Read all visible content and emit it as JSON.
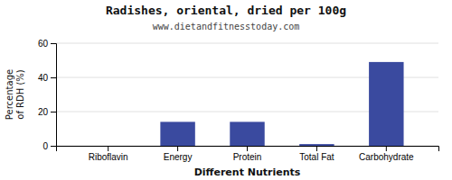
{
  "chart_data": {
    "type": "bar",
    "title": "Radishes, oriental, dried per 100g",
    "subtitle": "www.dietandfitnesstoday.com",
    "xlabel": "Different Nutrients",
    "ylabel": "Percentage\nof RDH (%)",
    "categories": [
      "Riboflavin",
      "Energy",
      "Protein",
      "Total Fat",
      "Carbohydrate"
    ],
    "values": [
      0,
      14,
      14,
      1,
      49
    ],
    "color": "#3a4a9f",
    "ylim": [
      0,
      60
    ],
    "yticks": [
      0,
      20,
      40,
      60
    ],
    "grid": true
  }
}
